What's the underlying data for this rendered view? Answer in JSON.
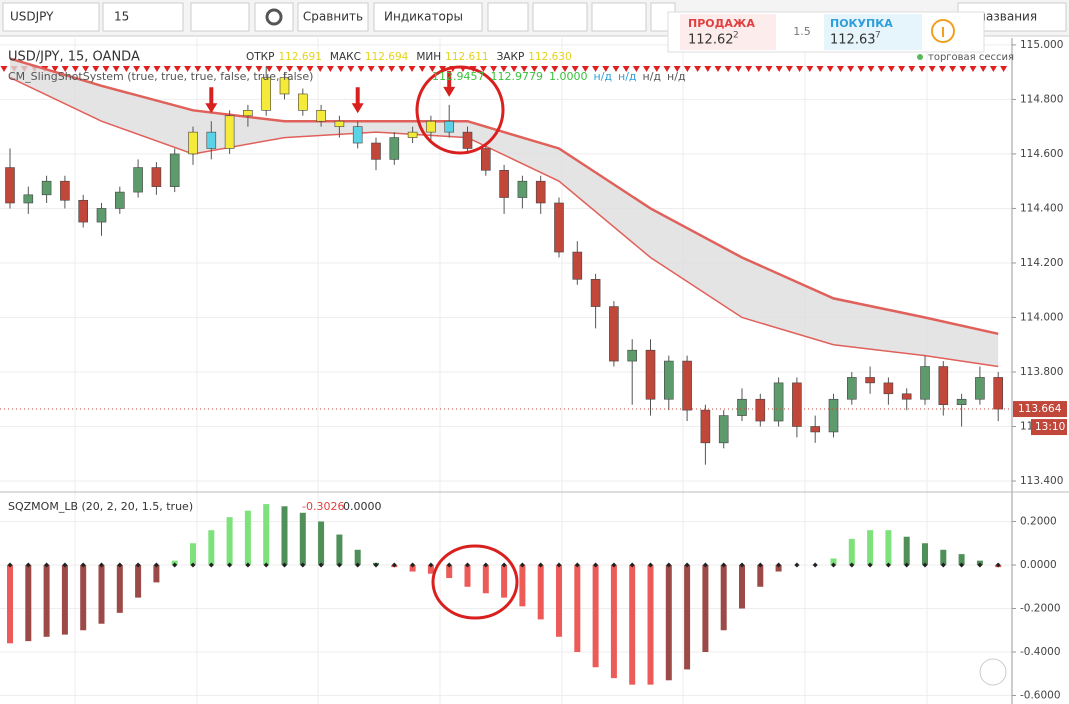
{
  "toolbar": {
    "symbol": "USDJPY",
    "interval": "15",
    "compare": "Сравнить",
    "indicators": "Индикаторы",
    "sell_label": "ПРОДАЖА",
    "sell_price": "112.62",
    "sell_sup": "2",
    "spread": "1.5",
    "buy_label": "ПОКУПКА",
    "buy_price": "112.63",
    "buy_sup": "7",
    "search": "з названия"
  },
  "chart_data": [
    {
      "type": "candlestick",
      "title": "USD/JPY, 15, OANDA",
      "ohlc": [
        {
          "name": "ОТКР",
          "value": "112.691"
        },
        {
          "name": "МАКС",
          "value": "112.694"
        },
        {
          "name": "МИН",
          "value": "112.611"
        },
        {
          "name": "ЗАКР",
          "value": "112.630"
        }
      ],
      "indicator": {
        "name": "CM_SlingShotSystem (true, true, true, false, true, false)",
        "values": [
          "112.9457",
          "112.9779",
          "1.0000",
          "н/д",
          "н/д",
          "н/д",
          "н/д"
        ]
      },
      "session": "торговая сессия",
      "last_price": {
        "value": 113.664,
        "label": "113.664"
      },
      "countdown": "13:10",
      "ylim": [
        113.367,
        115.018
      ],
      "yticks": [
        {
          "value": 113.4,
          "label": "113.400"
        },
        {
          "value": 113.6,
          "label": "113.600"
        },
        {
          "value": 113.8,
          "label": "113.800"
        },
        {
          "value": 114.0,
          "label": "114.000"
        },
        {
          "value": 114.2,
          "label": "114.200"
        },
        {
          "value": 114.4,
          "label": "114.400"
        },
        {
          "value": 114.6,
          "label": "114.600"
        },
        {
          "value": 114.8,
          "label": "114.800"
        },
        {
          "value": 115.0,
          "label": "115.000"
        }
      ],
      "grid": true,
      "up_color": "#5d9b6c",
      "down_color": "#c0473a",
      "yellow_color": "#f5e93a",
      "cyan_color": "#5bd3e6",
      "band_color": "#e0605a",
      "yellow_candles": [
        10,
        12,
        13,
        14,
        15,
        16,
        17,
        18,
        22,
        23
      ],
      "cyan_candles": [
        11,
        19,
        24
      ],
      "arrows": [
        11,
        19,
        24
      ],
      "candles": [
        [
          114.55,
          114.62,
          114.4,
          114.42
        ],
        [
          114.42,
          114.48,
          114.38,
          114.45
        ],
        [
          114.45,
          114.52,
          114.42,
          114.5
        ],
        [
          114.5,
          114.52,
          114.4,
          114.43
        ],
        [
          114.43,
          114.45,
          114.33,
          114.35
        ],
        [
          114.35,
          114.42,
          114.3,
          114.4
        ],
        [
          114.4,
          114.48,
          114.38,
          114.46
        ],
        [
          114.46,
          114.58,
          114.44,
          114.55
        ],
        [
          114.55,
          114.57,
          114.45,
          114.48
        ],
        [
          114.48,
          114.62,
          114.46,
          114.6
        ],
        [
          114.6,
          114.7,
          114.56,
          114.68
        ],
        [
          114.68,
          114.72,
          114.58,
          114.62
        ],
        [
          114.62,
          114.76,
          114.6,
          114.74
        ],
        [
          114.74,
          114.78,
          114.7,
          114.76
        ],
        [
          114.76,
          114.92,
          114.74,
          114.88
        ],
        [
          114.88,
          114.9,
          114.8,
          114.82
        ],
        [
          114.82,
          114.84,
          114.74,
          114.76
        ],
        [
          114.76,
          114.78,
          114.7,
          114.72
        ],
        [
          114.72,
          114.74,
          114.66,
          114.7
        ],
        [
          114.7,
          114.72,
          114.62,
          114.64
        ],
        [
          114.64,
          114.66,
          114.54,
          114.58
        ],
        [
          114.58,
          114.68,
          114.56,
          114.66
        ],
        [
          114.66,
          114.7,
          114.64,
          114.68
        ],
        [
          114.68,
          114.74,
          114.64,
          114.72
        ],
        [
          114.72,
          114.78,
          114.66,
          114.68
        ],
        [
          114.68,
          114.7,
          114.6,
          114.62
        ],
        [
          114.62,
          114.64,
          114.52,
          114.54
        ],
        [
          114.54,
          114.56,
          114.38,
          114.44
        ],
        [
          114.44,
          114.52,
          114.4,
          114.5
        ],
        [
          114.5,
          114.52,
          114.38,
          114.42
        ],
        [
          114.42,
          114.44,
          114.22,
          114.24
        ],
        [
          114.24,
          114.28,
          114.12,
          114.14
        ],
        [
          114.14,
          114.16,
          113.96,
          114.04
        ],
        [
          114.04,
          114.06,
          113.82,
          113.84
        ],
        [
          113.84,
          113.92,
          113.68,
          113.88
        ],
        [
          113.88,
          113.92,
          113.64,
          113.7
        ],
        [
          113.7,
          113.86,
          113.66,
          113.84
        ],
        [
          113.84,
          113.86,
          113.62,
          113.66
        ],
        [
          113.66,
          113.68,
          113.46,
          113.54
        ],
        [
          113.54,
          113.66,
          113.52,
          113.64
        ],
        [
          113.64,
          113.74,
          113.62,
          113.7
        ],
        [
          113.7,
          113.72,
          113.6,
          113.62
        ],
        [
          113.62,
          113.78,
          113.6,
          113.76
        ],
        [
          113.76,
          113.78,
          113.56,
          113.6
        ],
        [
          113.6,
          113.64,
          113.54,
          113.58
        ],
        [
          113.58,
          113.72,
          113.56,
          113.7
        ],
        [
          113.7,
          113.8,
          113.68,
          113.78
        ],
        [
          113.78,
          113.82,
          113.72,
          113.76
        ],
        [
          113.76,
          113.78,
          113.68,
          113.72
        ],
        [
          113.72,
          113.74,
          113.66,
          113.7
        ],
        [
          113.7,
          113.86,
          113.68,
          113.82
        ],
        [
          113.82,
          113.84,
          113.64,
          113.68
        ],
        [
          113.68,
          113.72,
          113.6,
          113.7
        ],
        [
          113.7,
          113.82,
          113.68,
          113.78
        ],
        [
          113.78,
          113.8,
          113.62,
          113.664
        ]
      ],
      "band": {
        "index": [
          0,
          5,
          10,
          15,
          20,
          25,
          30,
          35,
          40,
          45,
          50,
          54
        ],
        "upper": [
          114.95,
          114.85,
          114.76,
          114.72,
          114.72,
          114.72,
          114.62,
          114.4,
          114.22,
          114.07,
          114.0,
          113.94
        ],
        "lower": [
          114.88,
          114.72,
          114.6,
          114.66,
          114.68,
          114.66,
          114.5,
          114.22,
          114.0,
          113.9,
          113.86,
          113.82
        ]
      }
    },
    {
      "type": "bar",
      "title": "SQZMOM_LB (20, 2, 20, 1.5, true)",
      "readout": [
        "-0.3026",
        "0.0000"
      ],
      "ylim": [
        -0.639,
        0.331
      ],
      "yticks": [
        {
          "value": 0.2,
          "label": "0.2000"
        },
        {
          "value": 0,
          "label": "0.0000"
        },
        {
          "value": -0.2,
          "label": "-0.2000"
        },
        {
          "value": -0.4,
          "label": "-0.4000"
        },
        {
          "value": -0.6,
          "label": "-0.6000"
        }
      ],
      "colors": {
        "pos_up": "#7de27b",
        "pos_down": "#4f8f58",
        "neg_down": "#ec5b57",
        "neg_up": "#9c4a48"
      },
      "values": [
        -0.36,
        -0.35,
        -0.33,
        -0.32,
        -0.3,
        -0.27,
        -0.22,
        -0.15,
        -0.08,
        0.02,
        0.1,
        0.16,
        0.22,
        0.25,
        0.28,
        0.27,
        0.24,
        0.2,
        0.14,
        0.07,
        0.01,
        -0.01,
        -0.03,
        -0.04,
        -0.06,
        -0.1,
        -0.13,
        -0.15,
        -0.19,
        -0.25,
        -0.33,
        -0.4,
        -0.47,
        -0.52,
        -0.55,
        -0.55,
        -0.53,
        -0.48,
        -0.4,
        -0.3,
        -0.2,
        -0.1,
        -0.03,
        0.0,
        0.0,
        0.03,
        0.12,
        0.16,
        0.16,
        0.13,
        0.1,
        0.07,
        0.05,
        0.02,
        -0.01
      ]
    }
  ]
}
